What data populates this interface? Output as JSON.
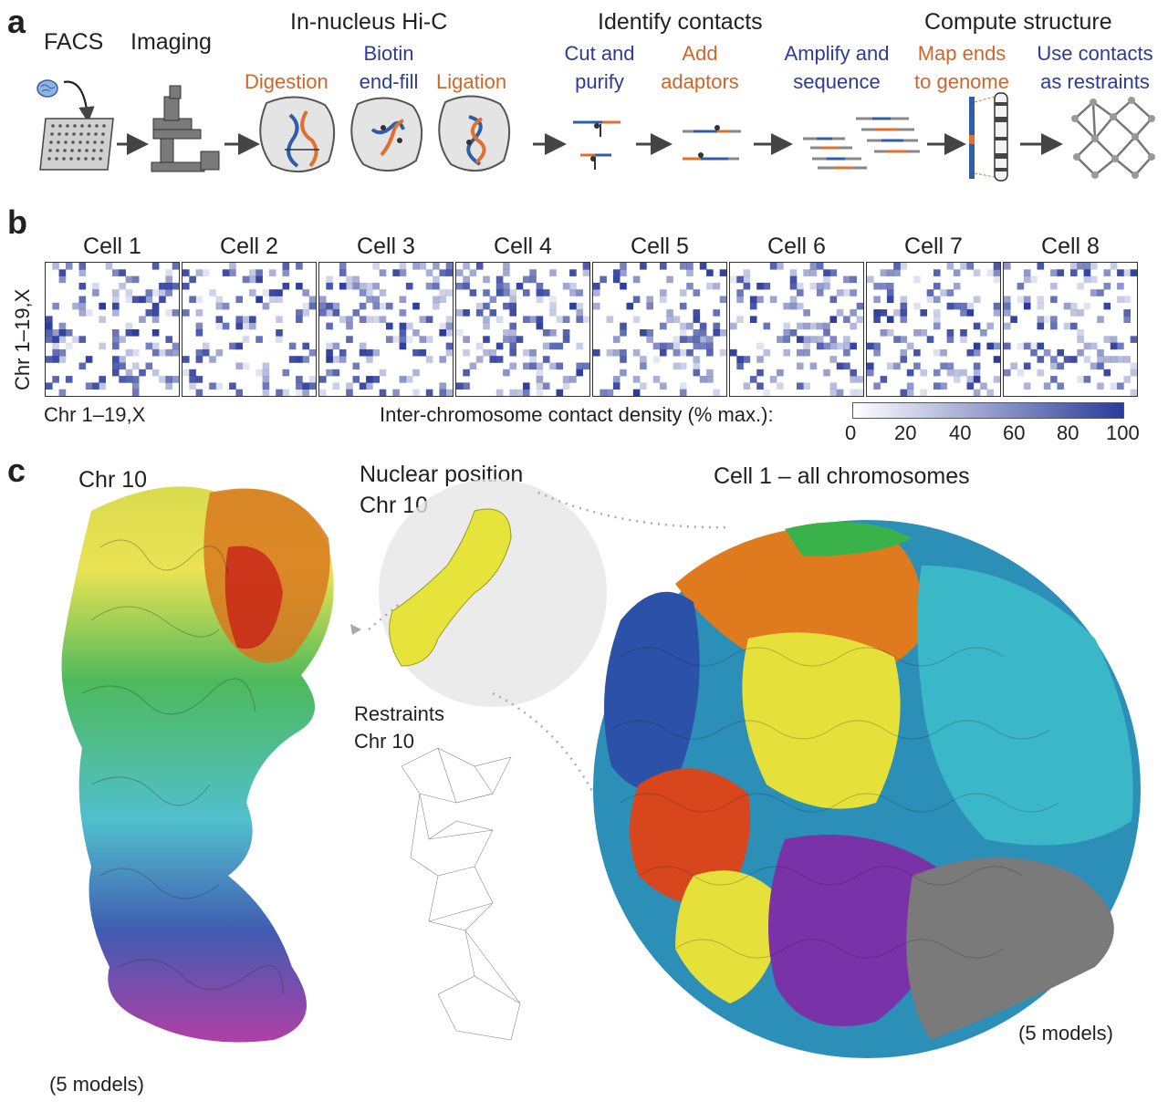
{
  "panel_a": {
    "letter": "a",
    "facs": "FACS",
    "imaging": "Imaging",
    "in_nucleus": "In-nucleus Hi-C",
    "identify": "Identify contacts",
    "compute": "Compute structure",
    "digestion": "Digestion",
    "biotin_1": "Biotin",
    "biotin_2": "end-fill",
    "ligation": "Ligation",
    "cut_1": "Cut and",
    "cut_2": "purify",
    "add_1": "Add",
    "add_2": "adaptors",
    "amp_1": "Amplify and",
    "amp_2": "sequence",
    "map_1": "Map ends",
    "map_2": "to genome",
    "use_1": "Use contacts",
    "use_2": "as restraints"
  },
  "panel_b": {
    "letter": "b",
    "cells": [
      "Cell 1",
      "Cell 2",
      "Cell 3",
      "Cell 4",
      "Cell 5",
      "Cell 6",
      "Cell 7",
      "Cell 8"
    ],
    "y_label": "Chr 1–19,X",
    "x_label": "Chr 1–19,X",
    "colorbar_label": "Inter-chromosome contact density (% max.):",
    "colorbar_ticks": [
      "0",
      "20",
      "40",
      "60",
      "80",
      "100"
    ],
    "colorbar_color": "#2b3b9a"
  },
  "panel_c": {
    "letter": "c",
    "chr10_title": "Chr 10",
    "nuclear_1": "Nuclear position",
    "nuclear_2": "Chr 10",
    "cell1_title": "Cell 1 – all chromosomes",
    "restraints_1": "Restraints",
    "restraints_2": "Chr 10",
    "models_left": "(5 models)",
    "models_right": "(5 models)"
  }
}
